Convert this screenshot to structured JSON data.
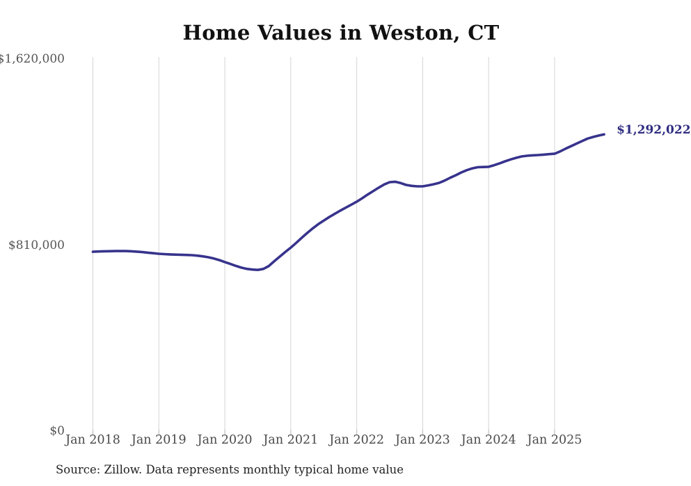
{
  "chart_data": {
    "type": "line",
    "title": "Home Values in Weston, CT",
    "source": "Source: Zillow. Data represents monthly typical home value",
    "series_name": "Monthly typical home value",
    "end_label": "$1,292,022",
    "line_color": "#37338c",
    "grid": "vertical-only",
    "ylim": [
      0,
      1620000
    ],
    "y_ticks": [
      {
        "label": "$1,620,000",
        "value": 1620000
      },
      {
        "label": "$810,000",
        "value": 810000
      },
      {
        "label": "$0",
        "value": 0
      }
    ],
    "x_ticks": [
      {
        "label": "Jan 2018",
        "month_index": 0
      },
      {
        "label": "Jan 2019",
        "month_index": 12
      },
      {
        "label": "Jan 2020",
        "month_index": 24
      },
      {
        "label": "Jan 2021",
        "month_index": 36
      },
      {
        "label": "Jan 2022",
        "month_index": 48
      },
      {
        "label": "Jan 2023",
        "month_index": 60
      },
      {
        "label": "Jan 2024",
        "month_index": 72
      },
      {
        "label": "Jan 2025",
        "month_index": 84
      }
    ],
    "x": [
      "2018-01",
      "2018-02",
      "2018-03",
      "2018-04",
      "2018-05",
      "2018-06",
      "2018-07",
      "2018-08",
      "2018-09",
      "2018-10",
      "2018-11",
      "2018-12",
      "2019-01",
      "2019-02",
      "2019-03",
      "2019-04",
      "2019-05",
      "2019-06",
      "2019-07",
      "2019-08",
      "2019-09",
      "2019-10",
      "2019-11",
      "2019-12",
      "2020-01",
      "2020-02",
      "2020-03",
      "2020-04",
      "2020-05",
      "2020-06",
      "2020-07",
      "2020-08",
      "2020-09",
      "2020-10",
      "2020-11",
      "2020-12",
      "2021-01",
      "2021-02",
      "2021-03",
      "2021-04",
      "2021-05",
      "2021-06",
      "2021-07",
      "2021-08",
      "2021-09",
      "2021-10",
      "2021-11",
      "2021-12",
      "2022-01",
      "2022-02",
      "2022-03",
      "2022-04",
      "2022-05",
      "2022-06",
      "2022-07",
      "2022-08",
      "2022-09",
      "2022-10",
      "2022-11",
      "2022-12",
      "2023-01",
      "2023-02",
      "2023-03",
      "2023-04",
      "2023-05",
      "2023-06",
      "2023-07",
      "2023-08",
      "2023-09",
      "2023-10",
      "2023-11",
      "2023-12",
      "2024-01",
      "2024-02",
      "2024-03",
      "2024-04",
      "2024-05",
      "2024-06",
      "2024-07",
      "2024-08",
      "2024-09",
      "2024-10",
      "2024-11",
      "2024-12",
      "2025-01",
      "2025-02",
      "2025-03",
      "2025-04",
      "2025-05",
      "2025-06",
      "2025-07",
      "2025-08",
      "2025-09",
      "2025-10"
    ],
    "values": [
      781000,
      782000,
      783000,
      783500,
      784000,
      784000,
      784000,
      783000,
      781500,
      779500,
      777000,
      774500,
      772000,
      770500,
      769500,
      768500,
      768000,
      767000,
      766000,
      764000,
      761000,
      757000,
      751500,
      744500,
      736000,
      728000,
      719500,
      712000,
      706500,
      703500,
      702000,
      706000,
      719000,
      740000,
      760000,
      780000,
      799000,
      820000,
      842000,
      863000,
      883000,
      901000,
      917000,
      932000,
      946000,
      960000,
      973000,
      986000,
      999000,
      1014000,
      1030000,
      1045000,
      1060000,
      1074000,
      1084000,
      1086000,
      1080000,
      1072000,
      1068000,
      1066000,
      1066000,
      1070000,
      1075000,
      1081000,
      1091000,
      1103000,
      1114000,
      1126000,
      1136000,
      1144000,
      1149000,
      1150000,
      1151000,
      1158000,
      1166000,
      1175000,
      1183000,
      1190000,
      1196000,
      1199000,
      1201000,
      1202000,
      1204000,
      1206000,
      1208000,
      1218000,
      1230000,
      1241000,
      1252000,
      1263000,
      1274000,
      1281000,
      1287000,
      1292022
    ]
  }
}
